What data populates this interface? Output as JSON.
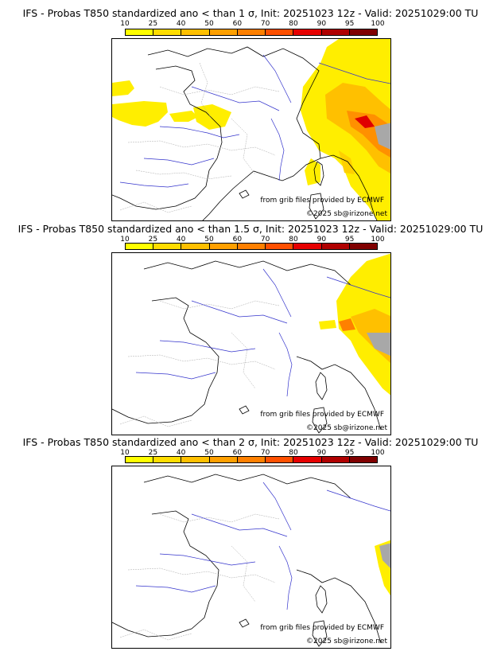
{
  "colorbar": {
    "ticks": [
      "10",
      "25",
      "40",
      "50",
      "60",
      "70",
      "80",
      "90",
      "95",
      "100"
    ],
    "colors": [
      "#ffff00",
      "#ffdd00",
      "#ffc000",
      "#ffa000",
      "#ff8000",
      "#ff5000",
      "#e60000",
      "#b00000",
      "#800000"
    ]
  },
  "panels": [
    {
      "title": "IFS - Probas T850  standardized ano < than 1 σ, Init: 20251023 12z - Valid: 20251029:00 TU",
      "credit": "from grib files provided by ECMWF",
      "copyright": "©2025 sb@irizone.net"
    },
    {
      "title": "IFS - Probas T850  standardized ano < than 1.5 σ, Init: 20251023 12z - Valid: 20251029:00 TU",
      "credit": "from grib files provided by ECMWF",
      "copyright": "©2025 sb@irizone.net"
    },
    {
      "title": "IFS - Probas T850  standardized ano < than 2 σ, Init: 20251023 12z - Valid: 20251029:00 TU",
      "credit": "from grib files provided by ECMWF",
      "copyright": "©2025 sb@irizone.net"
    }
  ]
}
